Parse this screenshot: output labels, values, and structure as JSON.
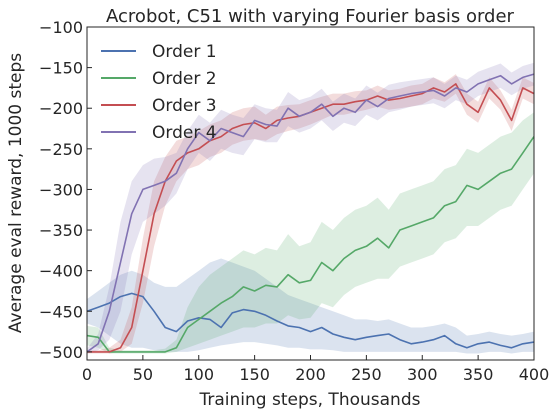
{
  "chart_data": {
    "type": "line",
    "title": "Acrobot, C51 with varying Fourier basis order",
    "xlabel": "Training steps, Thousands",
    "ylabel": "Average eval reward, 1000 steps",
    "xlim": [
      0,
      400
    ],
    "ylim": [
      -510,
      -100
    ],
    "xticks": [
      "0",
      "50",
      "100",
      "150",
      "200",
      "250",
      "300",
      "350",
      "400"
    ],
    "yticks": [
      "-500",
      "-450",
      "-400",
      "-350",
      "-300",
      "-250",
      "-200",
      "-150",
      "-100"
    ],
    "grid": false,
    "legend_position": "top-left",
    "x": [
      0,
      10,
      20,
      30,
      40,
      50,
      60,
      70,
      80,
      90,
      100,
      110,
      120,
      130,
      140,
      150,
      160,
      170,
      180,
      190,
      200,
      210,
      220,
      230,
      240,
      250,
      260,
      270,
      280,
      290,
      300,
      310,
      320,
      330,
      340,
      350,
      360,
      370,
      380,
      390,
      400
    ],
    "series": [
      {
        "name": "Order 1",
        "color": "#4c72b0",
        "values": [
          -450,
          -445,
          -440,
          -432,
          -428,
          -432,
          -450,
          -470,
          -475,
          -462,
          -458,
          -460,
          -470,
          -452,
          -448,
          -450,
          -455,
          -462,
          -468,
          -470,
          -475,
          -470,
          -478,
          -482,
          -485,
          -482,
          -480,
          -478,
          -485,
          -490,
          -488,
          -485,
          -480,
          -490,
          -495,
          -490,
          -488,
          -492,
          -495,
          -490,
          -488
        ],
        "lower": [
          -465,
          -470,
          -480,
          -490,
          -495,
          -495,
          -498,
          -500,
          -500,
          -500,
          -498,
          -495,
          -492,
          -490,
          -488,
          -488,
          -490,
          -492,
          -495,
          -495,
          -497,
          -497,
          -498,
          -500,
          -500,
          -500,
          -500,
          -500,
          -500,
          -500,
          -500,
          -500,
          -500,
          -500,
          -502,
          -502,
          -500,
          -500,
          -502,
          -500,
          -500
        ],
        "upper": [
          -435,
          -425,
          -415,
          -405,
          -400,
          -405,
          -415,
          -420,
          -420,
          -410,
          -400,
          -390,
          -385,
          -390,
          -395,
          -400,
          -410,
          -420,
          -430,
          -435,
          -440,
          -445,
          -450,
          -455,
          -460,
          -460,
          -462,
          -460,
          -465,
          -470,
          -470,
          -468,
          -465,
          -470,
          -480,
          -478,
          -475,
          -478,
          -480,
          -478,
          -475
        ]
      },
      {
        "name": "Order 2",
        "color": "#55a868",
        "values": [
          -480,
          -482,
          -500,
          -500,
          -500,
          -500,
          -500,
          -500,
          -495,
          -470,
          -460,
          -450,
          -440,
          -432,
          -420,
          -425,
          -418,
          -420,
          -405,
          -415,
          -412,
          -390,
          -400,
          -385,
          -375,
          -370,
          -360,
          -372,
          -350,
          -345,
          -340,
          -335,
          -320,
          -315,
          -295,
          -300,
          -290,
          -280,
          -275,
          -255,
          -235
        ],
        "lower": [
          -492,
          -495,
          -502,
          -502,
          -502,
          -502,
          -502,
          -502,
          -500,
          -495,
          -490,
          -485,
          -480,
          -475,
          -470,
          -470,
          -465,
          -465,
          -455,
          -460,
          -458,
          -440,
          -445,
          -430,
          -420,
          -415,
          -410,
          -410,
          -395,
          -390,
          -385,
          -380,
          -365,
          -360,
          -345,
          -345,
          -335,
          -325,
          -320,
          -300,
          -280
        ],
        "upper": [
          -468,
          -470,
          -495,
          -498,
          -498,
          -498,
          -498,
          -496,
          -485,
          -445,
          -420,
          -405,
          -395,
          -385,
          -375,
          -380,
          -372,
          -375,
          -355,
          -370,
          -365,
          -340,
          -350,
          -335,
          -325,
          -320,
          -310,
          -325,
          -305,
          -300,
          -295,
          -290,
          -275,
          -270,
          -250,
          -255,
          -245,
          -235,
          -230,
          -215,
          -205
        ]
      },
      {
        "name": "Order 3",
        "color": "#c44e52",
        "values": [
          -500,
          -500,
          -500,
          -495,
          -470,
          -400,
          -330,
          -290,
          -265,
          -255,
          -250,
          -240,
          -235,
          -225,
          -220,
          -218,
          -225,
          -215,
          -212,
          -210,
          -205,
          -200,
          -195,
          -195,
          -192,
          -190,
          -185,
          -190,
          -188,
          -185,
          -182,
          -175,
          -180,
          -170,
          -195,
          -205,
          -175,
          -190,
          -215,
          -175,
          -182
        ],
        "lower": [
          -502,
          -502,
          -502,
          -500,
          -490,
          -440,
          -370,
          -320,
          -290,
          -275,
          -270,
          -260,
          -255,
          -245,
          -240,
          -238,
          -240,
          -232,
          -228,
          -225,
          -220,
          -214,
          -208,
          -208,
          -205,
          -202,
          -198,
          -202,
          -200,
          -198,
          -195,
          -188,
          -192,
          -182,
          -208,
          -218,
          -188,
          -202,
          -228,
          -188,
          -195
        ],
        "upper": [
          -498,
          -498,
          -495,
          -485,
          -445,
          -360,
          -290,
          -260,
          -240,
          -235,
          -228,
          -220,
          -215,
          -205,
          -200,
          -198,
          -208,
          -198,
          -196,
          -195,
          -190,
          -186,
          -182,
          -182,
          -179,
          -178,
          -172,
          -178,
          -176,
          -172,
          -170,
          -162,
          -168,
          -158,
          -182,
          -192,
          -162,
          -178,
          -202,
          -162,
          -169
        ]
      },
      {
        "name": "Order 4",
        "color": "#8172b2",
        "values": [
          -500,
          -490,
          -450,
          -390,
          -330,
          -300,
          -295,
          -290,
          -280,
          -250,
          -230,
          -240,
          -225,
          -230,
          -235,
          -215,
          -220,
          -222,
          -200,
          -210,
          -205,
          -195,
          -210,
          -200,
          -205,
          -190,
          -198,
          -188,
          -185,
          -182,
          -180,
          -178,
          -185,
          -175,
          -180,
          -170,
          -165,
          -160,
          -170,
          -162,
          -158
        ],
        "lower": [
          -502,
          -498,
          -485,
          -450,
          -380,
          -340,
          -330,
          -320,
          -305,
          -275,
          -255,
          -265,
          -250,
          -255,
          -258,
          -238,
          -242,
          -242,
          -222,
          -230,
          -225,
          -215,
          -228,
          -218,
          -222,
          -208,
          -215,
          -205,
          -202,
          -198,
          -196,
          -194,
          -200,
          -190,
          -195,
          -185,
          -180,
          -175,
          -184,
          -176,
          -172
        ],
        "upper": [
          -496,
          -478,
          -420,
          -340,
          -290,
          -270,
          -262,
          -260,
          -255,
          -228,
          -208,
          -218,
          -202,
          -208,
          -212,
          -195,
          -200,
          -202,
          -180,
          -190,
          -186,
          -176,
          -192,
          -182,
          -188,
          -172,
          -181,
          -171,
          -168,
          -166,
          -164,
          -162,
          -170,
          -160,
          -165,
          -155,
          -150,
          -145,
          -156,
          -148,
          -144
        ]
      }
    ]
  }
}
